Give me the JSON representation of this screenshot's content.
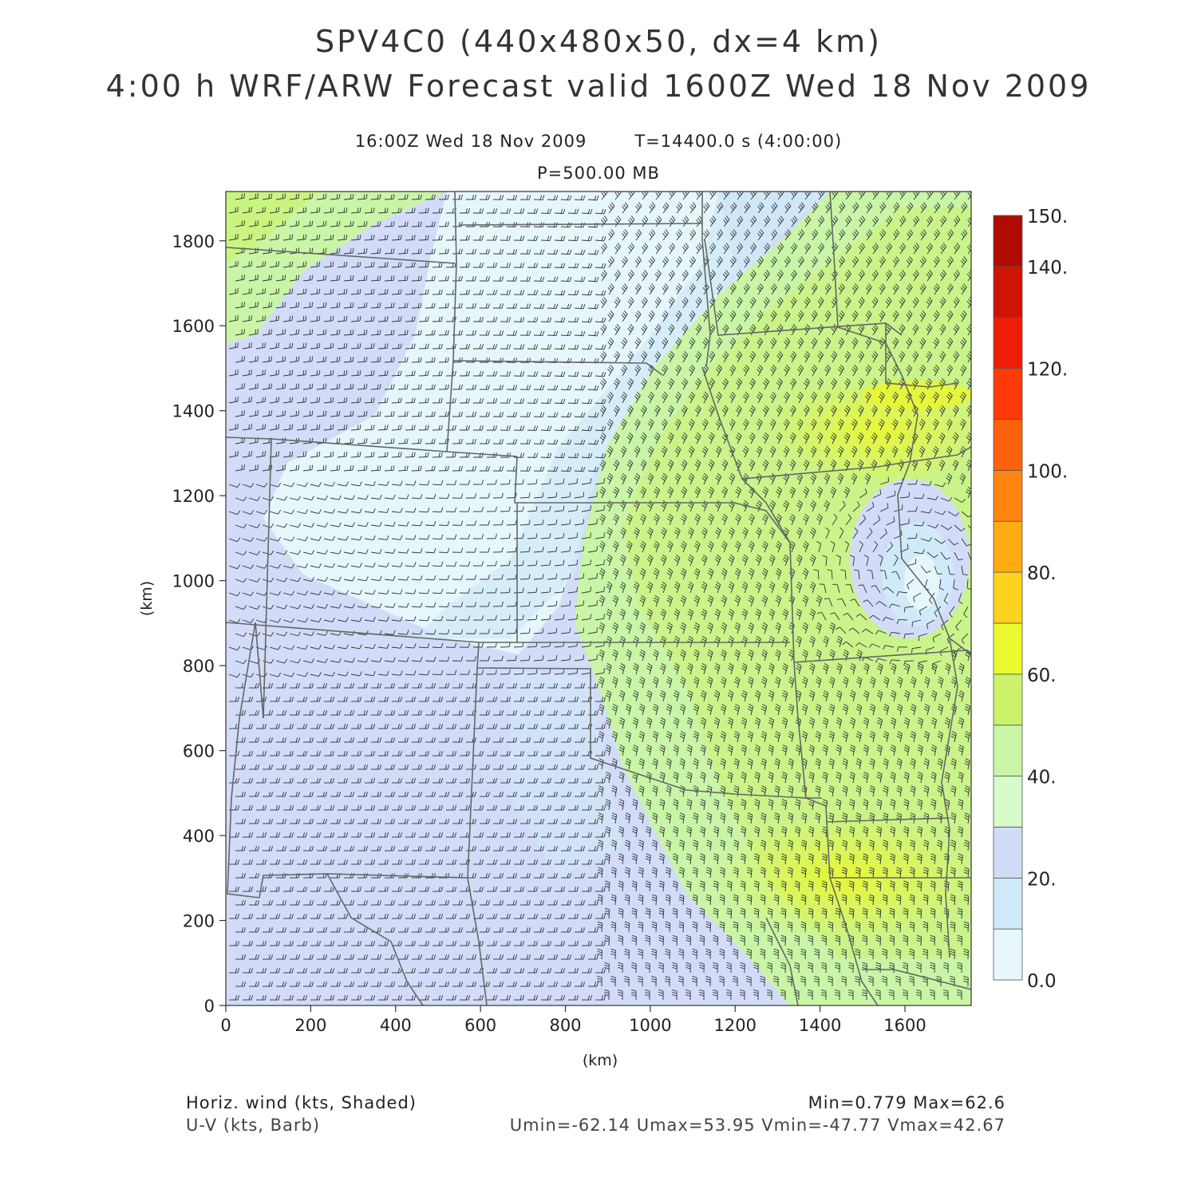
{
  "header": {
    "title_line1": "SPV4C0 (440x480x50, dx=4 km)",
    "title_line2": "4:00 h WRF/ARW Forecast valid 1600Z Wed 18 Nov 2009",
    "valid_time": "16:00Z Wed 18 Nov 2009",
    "sim_time": "T=14400.0 s (4:00:00)",
    "level": "P=500.00 MB"
  },
  "axes": {
    "xlabel": "(km)",
    "ylabel": "(km)",
    "x_ticks": [
      0,
      200,
      400,
      600,
      800,
      1000,
      1200,
      1400,
      1600
    ],
    "y_ticks": [
      0,
      200,
      400,
      600,
      800,
      1000,
      1200,
      1400,
      1600,
      1800
    ],
    "xlim": [
      0,
      1756
    ],
    "ylim": [
      0,
      1916
    ]
  },
  "colorbar": {
    "levels": [
      0,
      10,
      20,
      30,
      40,
      50,
      60,
      70,
      80,
      90,
      100,
      110,
      120,
      130,
      140,
      150
    ],
    "colors": [
      "#e6f7fb",
      "#cfeaf8",
      "#d2dcf8",
      "#d6fbc8",
      "#c8f5a6",
      "#cbf268",
      "#eaf82e",
      "#ffd21e",
      "#ffab14",
      "#ff8410",
      "#ff620c",
      "#ff3a08",
      "#ef1d06",
      "#cf1304",
      "#b00b02"
    ],
    "labels": [
      "0.0",
      "",
      "20.",
      "",
      "40.",
      "",
      "60.",
      "",
      "80.",
      "",
      "100.",
      "",
      "120.",
      "",
      "140.",
      "150."
    ]
  },
  "footer": {
    "left_line1": "Horiz. wind (kts, Shaded)",
    "left_line2": "U-V (kts, Barb)",
    "right_line1": "Min=0.779  Max=62.6",
    "right_line2": "Umin=-62.14  Umax=53.95  Vmin=-47.77  Vmax=42.67"
  }
}
